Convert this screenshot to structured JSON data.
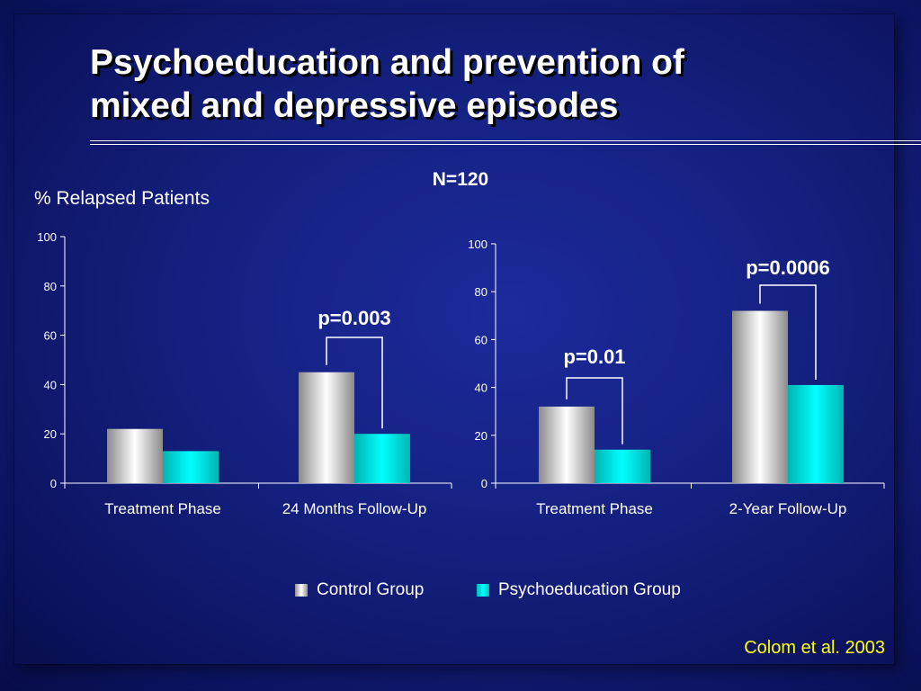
{
  "slide": {
    "title_line1": "Psychoeducation and prevention of",
    "title_line2": "mixed and depressive episodes",
    "n_label": "N=120",
    "y_axis_label": "% Relapsed Patients",
    "citation": "Colom et al. 2003"
  },
  "legend": {
    "control": "Control Group",
    "psycho": "Psychoeducation Group"
  },
  "colors": {
    "control": "#d8d8d8",
    "psycho": "#00e8e8",
    "citation": "#ffff00",
    "text": "#ffffff"
  },
  "chart_data": [
    {
      "type": "bar",
      "categories": [
        "Treatment Phase",
        "24 Months Follow-Up"
      ],
      "series": [
        {
          "name": "Control Group",
          "values": [
            22,
            45
          ]
        },
        {
          "name": "Psychoeducation Group",
          "values": [
            13,
            20
          ]
        }
      ],
      "ylim": [
        0,
        100
      ],
      "yticks": [
        0,
        20,
        40,
        60,
        80,
        100
      ],
      "annotations": [
        {
          "category_index": 1,
          "text": "p=0.003"
        }
      ]
    },
    {
      "type": "bar",
      "categories": [
        "Treatment Phase",
        "2-Year Follow-Up"
      ],
      "series": [
        {
          "name": "Control Group",
          "values": [
            32,
            72
          ]
        },
        {
          "name": "Psychoeducation Group",
          "values": [
            14,
            41
          ]
        }
      ],
      "ylim": [
        0,
        100
      ],
      "yticks": [
        0,
        20,
        40,
        60,
        80,
        100
      ],
      "annotations": [
        {
          "category_index": 0,
          "text": "p=0.01"
        },
        {
          "category_index": 1,
          "text": "p=0.0006"
        }
      ]
    }
  ]
}
